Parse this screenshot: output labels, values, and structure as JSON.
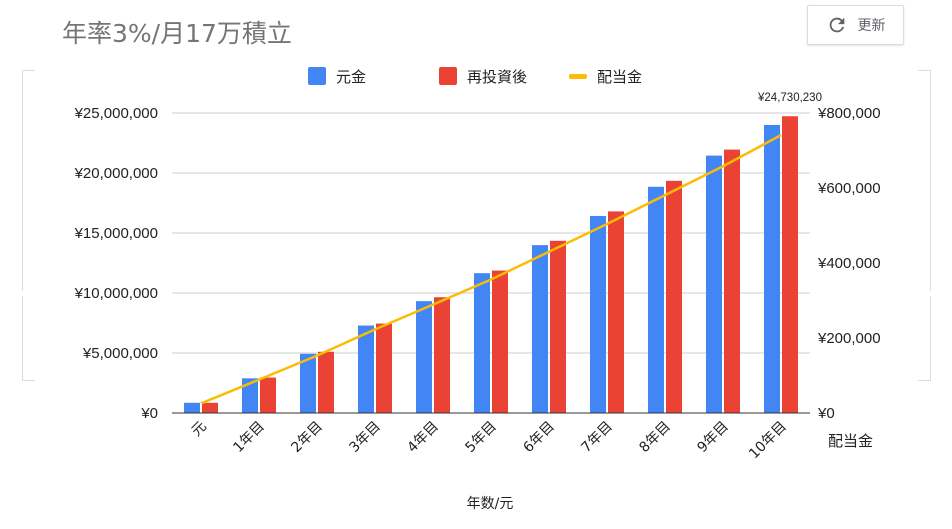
{
  "title": "年率3%/月17万積立",
  "refresh_button": {
    "label": "更新",
    "icon": "refresh-icon"
  },
  "chart_data": {
    "type": "bar",
    "categories": [
      "元",
      "1年目",
      "2年目",
      "3年目",
      "4年目",
      "5年目",
      "6年目",
      "7年目",
      "8年目",
      "9年目",
      "10年目"
    ],
    "series": [
      {
        "name": "元金",
        "type": "bar",
        "axis": "left",
        "color": "#4285f4",
        "values": [
          850000,
          2890000,
          4930000,
          7290000,
          9320000,
          11650000,
          13990000,
          16420000,
          18850000,
          21450000,
          24000000
        ]
      },
      {
        "name": "再投資後",
        "type": "bar",
        "axis": "left",
        "color": "#ea4335",
        "values": [
          850000,
          2950000,
          5100000,
          7450000,
          9650000,
          11870000,
          14350000,
          16800000,
          19350000,
          21950000,
          24730230
        ]
      },
      {
        "name": "配当金",
        "type": "line",
        "axis": "right",
        "color": "#fbbc04",
        "values": [
          25500,
          89000,
          153000,
          223000,
          289000,
          356000,
          430000,
          504000,
          581000,
          658000,
          741000
        ]
      }
    ],
    "left_axis": {
      "ticks": [
        "¥0",
        "¥5,000,000",
        "¥10,000,000",
        "¥15,000,000",
        "¥20,000,000",
        "¥25,000,000"
      ],
      "min": 0,
      "max": 25000000
    },
    "right_axis": {
      "ticks": [
        "¥0",
        "¥200,000",
        "¥400,000",
        "¥600,000",
        "¥800,000"
      ],
      "min": 0,
      "max": 800000,
      "label": "配当金"
    },
    "xlabel": "年数/元",
    "data_label": {
      "series": "再投資後",
      "category": "10年目",
      "text": "¥24,730,230"
    },
    "legend": "top",
    "grid": true
  }
}
